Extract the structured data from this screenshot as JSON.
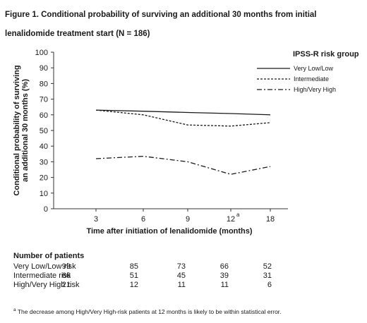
{
  "title": "Figure 1. Conditional probability of surviving an additional 30 months from initial lenalidomide treatment start (N = 186)",
  "chart_data": {
    "type": "line",
    "title": "Figure 1. Conditional probability of surviving an additional 30 months from initial lenalidomide treatment start (N = 186)",
    "xlabel": "Time after initiation of lenalidomide (months)",
    "ylabel": "Conditional probability of surviving an additional 30 months (%)",
    "ylabel_lines": [
      "Conditional probability of surviving",
      "an additional 30 months (%)"
    ],
    "categories": [
      "3",
      "6",
      "9",
      "12",
      "18"
    ],
    "category_superscripts": [
      "",
      "",
      "",
      "a",
      ""
    ],
    "ylim": [
      0,
      100
    ],
    "yticks": [
      "0",
      "10",
      "20",
      "30",
      "40",
      "50",
      "60",
      "70",
      "80",
      "90",
      "100"
    ],
    "grid": false,
    "legend_title": "IPSS-R risk group",
    "legend_position": "top-right",
    "series": [
      {
        "name": "Very Low/Low",
        "values": [
          63,
          62.3,
          61.5,
          60.8,
          60
        ],
        "color": "#1a1a1a",
        "dash": "solid"
      },
      {
        "name": "Intermediate",
        "values": [
          63,
          60,
          53.5,
          52.8,
          55
        ],
        "color": "#1a1a1a",
        "dash": "dashed"
      },
      {
        "name": "High/Very High",
        "values": [
          32,
          33.5,
          30,
          22,
          27
        ],
        "color": "#1a1a1a",
        "dash": "dash-dot"
      }
    ]
  },
  "patients": {
    "title": "Number of patients",
    "rows": [
      {
        "label": "Very Low/Low risk",
        "values": [
          "99",
          "85",
          "73",
          "66",
          "52"
        ]
      },
      {
        "label": "Intermediate risk",
        "values": [
          "66",
          "51",
          "45",
          "39",
          "31"
        ]
      },
      {
        "label": "High/Very High risk",
        "values": [
          "21",
          "12",
          "11",
          "11",
          "6"
        ]
      }
    ]
  },
  "footnote": {
    "marker": "a",
    "text": " The decrease among High/Very High-risk patients at 12 months is likely to be within statistical error."
  }
}
